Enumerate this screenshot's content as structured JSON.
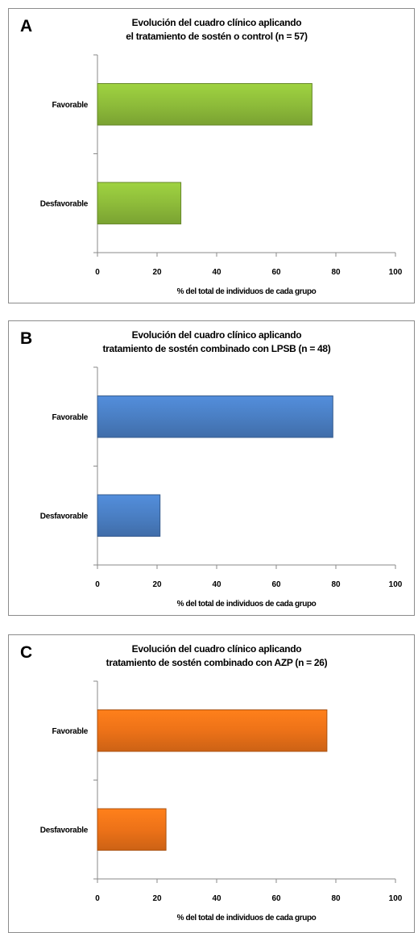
{
  "chart_data": [
    {
      "type": "bar",
      "orientation": "horizontal",
      "panel_label": "A",
      "title_lines": [
        "Evolución del cuadro clínico aplicando",
        "el tratamiento de sostén o control (n = 57)"
      ],
      "categories": [
        "Favorable",
        "Desfavorable"
      ],
      "values": [
        72,
        28
      ],
      "xlabel": "% del total de individuos de cada grupo",
      "xlim": [
        0,
        100
      ],
      "xticks": [
        "0",
        "20",
        "40",
        "60",
        "80",
        "100"
      ],
      "grid": false,
      "color": "#8ebc3a"
    },
    {
      "type": "bar",
      "orientation": "horizontal",
      "panel_label": "B",
      "title_lines": [
        "Evolución del cuadro clínico aplicando",
        "tratamiento de sostén combinado con LPSB (n = 48)"
      ],
      "categories": [
        "Favorable",
        "Desfavorable"
      ],
      "values": [
        79,
        21
      ],
      "xlabel": "% del total de individuos de cada grupo",
      "xlim": [
        0,
        100
      ],
      "xticks": [
        "0",
        "20",
        "40",
        "60",
        "80",
        "100"
      ],
      "grid": false,
      "color": "#4a7fc4"
    },
    {
      "type": "bar",
      "orientation": "horizontal",
      "panel_label": "C",
      "title_lines": [
        "Evolución del cuadro clínico aplicando",
        "tratamiento de sostén combinado con AZP (n = 26)"
      ],
      "categories": [
        "Favorable",
        "Desfavorable"
      ],
      "values": [
        77,
        23
      ],
      "xlabel": "% del total de individuos de cada grupo",
      "xlim": [
        0,
        100
      ],
      "xticks": [
        "0",
        "20",
        "40",
        "60",
        "80",
        "100"
      ],
      "grid": false,
      "color": "#ed7218"
    }
  ]
}
